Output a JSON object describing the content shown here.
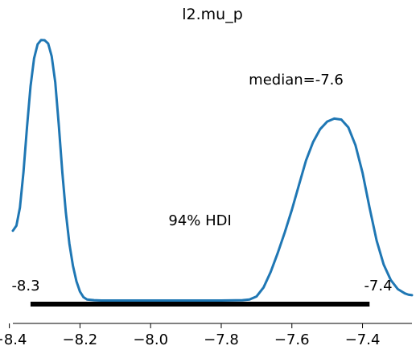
{
  "chart_data": {
    "type": "line",
    "title": "l2.mu_p",
    "xlabel": "",
    "ylabel": "",
    "xlim": [
      -8.39,
      -7.26
    ],
    "ylim": [
      -0.2,
      10.5
    ],
    "x_ticks": [
      -8.4,
      -8.2,
      -8.0,
      -7.8,
      -7.6,
      -7.4
    ],
    "x_tick_labels": [
      "−8.4",
      "−8.2",
      "−8.0",
      "−7.8",
      "−7.6",
      "−7.4"
    ],
    "grid": false,
    "series": [
      {
        "color": "#1f77b4",
        "points": [
          [
            -8.39,
            2.64
          ],
          [
            -8.38,
            2.84
          ],
          [
            -8.37,
            3.56
          ],
          [
            -8.36,
            4.96
          ],
          [
            -8.35,
            6.74
          ],
          [
            -8.34,
            8.36
          ],
          [
            -8.33,
            9.46
          ],
          [
            -8.32,
            10.02
          ],
          [
            -8.31,
            10.19
          ],
          [
            -8.3,
            10.18
          ],
          [
            -8.29,
            10.05
          ],
          [
            -8.28,
            9.54
          ],
          [
            -8.27,
            8.52
          ],
          [
            -8.26,
            6.83
          ],
          [
            -8.25,
            4.96
          ],
          [
            -8.24,
            3.36
          ],
          [
            -8.23,
            2.13
          ],
          [
            -8.22,
            1.26
          ],
          [
            -8.21,
            0.64
          ],
          [
            -8.2,
            0.23
          ],
          [
            -8.19,
            0.01
          ],
          [
            -8.18,
            -0.08
          ],
          [
            -8.16,
            -0.11
          ],
          [
            -8.14,
            -0.12
          ],
          [
            -8.0,
            -0.12
          ],
          [
            -7.8,
            -0.12
          ],
          [
            -7.74,
            -0.11
          ],
          [
            -7.72,
            -0.08
          ],
          [
            -7.7,
            0.04
          ],
          [
            -7.68,
            0.4
          ],
          [
            -7.66,
            1.01
          ],
          [
            -7.64,
            1.76
          ],
          [
            -7.62,
            2.58
          ],
          [
            -7.6,
            3.47
          ],
          [
            -7.58,
            4.45
          ],
          [
            -7.56,
            5.42
          ],
          [
            -7.54,
            6.15
          ],
          [
            -7.52,
            6.66
          ],
          [
            -7.5,
            6.96
          ],
          [
            -7.48,
            7.08
          ],
          [
            -7.46,
            7.04
          ],
          [
            -7.44,
            6.73
          ],
          [
            -7.42,
            6.03
          ],
          [
            -7.4,
            4.94
          ],
          [
            -7.38,
            3.55
          ],
          [
            -7.36,
            2.25
          ],
          [
            -7.34,
            1.3
          ],
          [
            -7.32,
            0.69
          ],
          [
            -7.3,
            0.33
          ],
          [
            -7.28,
            0.16
          ],
          [
            -7.27,
            0.11
          ],
          [
            -7.26,
            0.09
          ]
        ]
      }
    ],
    "hdi": {
      "label": "94% HDI",
      "low": -8.34,
      "high": -7.38,
      "low_label": "-8.3",
      "high_label": "-7.4"
    },
    "median_label": "median=-7.6"
  }
}
